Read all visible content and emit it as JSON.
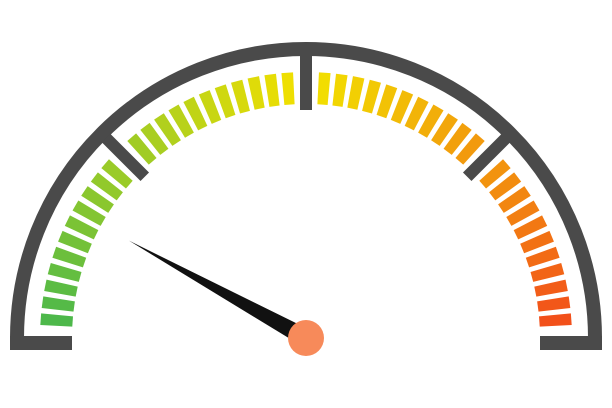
{
  "gauge": {
    "value_fraction": 0.16,
    "segment_count": 44,
    "section_count": 4,
    "colors": {
      "frame": "#4a4a4a",
      "needle": "#111111",
      "hub": "#f78a5a",
      "scale_start": "#4db84a",
      "scale_mid": "#f2e000",
      "scale_end": "#f2501a"
    },
    "icons": {
      "needle": "needle-icon",
      "hub": "hub-icon"
    }
  }
}
